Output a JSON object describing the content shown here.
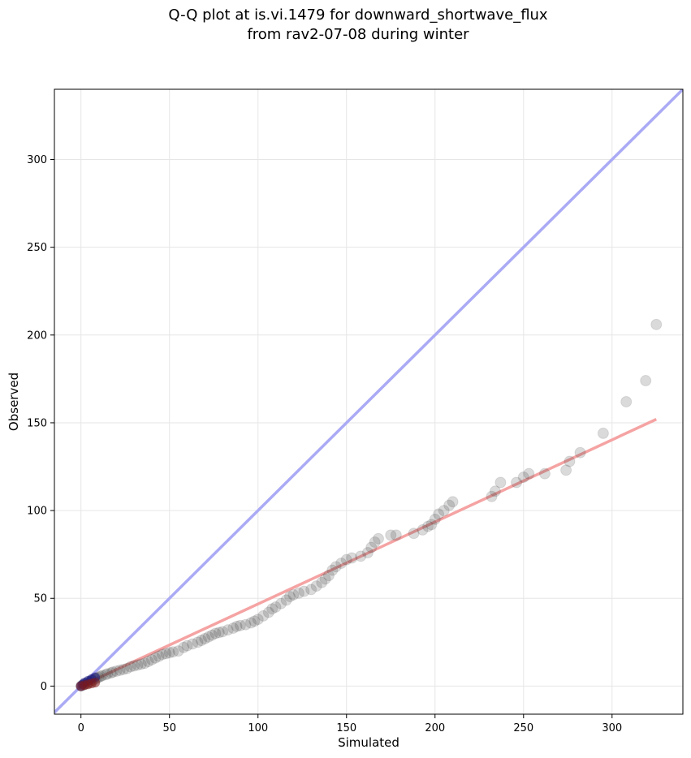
{
  "chart_data": {
    "type": "scatter",
    "title_lines": [
      "Q-Q plot at is.vi.1479 for downward_shortwave_flux",
      "from rav2-07-08 during winter"
    ],
    "xlabel": "Simulated",
    "ylabel": "Observed",
    "xlim": [
      -15,
      340
    ],
    "ylim": [
      -16,
      340
    ],
    "xticks": [
      0,
      50,
      100,
      150,
      200,
      250,
      300
    ],
    "yticks": [
      0,
      50,
      100,
      150,
      200,
      250,
      300
    ],
    "grid": true,
    "colors": {
      "points": "#333333",
      "identity_line": "#aaaaf5",
      "fit_line": "#f5a3a3",
      "low_quantile_blue": "#1a1a80",
      "low_quantile_red": "#801a1a"
    },
    "identity_line": {
      "from": [
        -15,
        -15
      ],
      "to": [
        340,
        340
      ]
    },
    "fit_line": {
      "from": [
        0,
        0
      ],
      "to": [
        325,
        152
      ]
    },
    "points": [
      [
        0,
        0
      ],
      [
        1,
        0.5
      ],
      [
        2,
        1
      ],
      [
        3,
        1.5
      ],
      [
        4,
        2
      ],
      [
        5,
        2.5
      ],
      [
        6,
        3
      ],
      [
        7,
        3.5
      ],
      [
        8,
        4
      ],
      [
        9,
        4.5
      ],
      [
        10,
        5
      ],
      [
        11,
        5.5
      ],
      [
        12,
        6
      ],
      [
        14,
        6.5
      ],
      [
        15,
        7
      ],
      [
        17,
        7.5
      ],
      [
        18,
        8
      ],
      [
        20,
        8.5
      ],
      [
        22,
        9
      ],
      [
        24,
        9.5
      ],
      [
        26,
        10
      ],
      [
        28,
        11
      ],
      [
        30,
        11.5
      ],
      [
        32,
        12
      ],
      [
        34,
        12.5
      ],
      [
        36,
        13
      ],
      [
        38,
        14
      ],
      [
        40,
        15
      ],
      [
        42,
        16
      ],
      [
        44,
        17
      ],
      [
        46,
        18
      ],
      [
        48,
        18.5
      ],
      [
        50,
        19
      ],
      [
        52,
        19.5
      ],
      [
        55,
        20
      ],
      [
        58,
        22
      ],
      [
        60,
        23
      ],
      [
        63,
        24
      ],
      [
        66,
        25
      ],
      [
        68,
        26
      ],
      [
        70,
        27
      ],
      [
        72,
        28
      ],
      [
        74,
        29
      ],
      [
        76,
        30
      ],
      [
        78,
        30.5
      ],
      [
        80,
        31
      ],
      [
        83,
        32
      ],
      [
        86,
        33
      ],
      [
        88,
        34
      ],
      [
        90,
        34.5
      ],
      [
        93,
        35
      ],
      [
        96,
        36
      ],
      [
        98,
        37
      ],
      [
        100,
        38
      ],
      [
        103,
        40
      ],
      [
        106,
        42
      ],
      [
        108,
        44
      ],
      [
        110,
        45
      ],
      [
        113,
        47
      ],
      [
        116,
        49
      ],
      [
        118,
        51
      ],
      [
        120,
        52
      ],
      [
        123,
        53
      ],
      [
        126,
        54
      ],
      [
        130,
        55
      ],
      [
        133,
        57
      ],
      [
        136,
        59
      ],
      [
        138,
        61
      ],
      [
        140,
        63
      ],
      [
        142,
        66
      ],
      [
        144,
        68
      ],
      [
        147,
        70
      ],
      [
        150,
        72
      ],
      [
        153,
        73
      ],
      [
        158,
        74
      ],
      [
        162,
        76
      ],
      [
        164,
        79
      ],
      [
        166,
        82
      ],
      [
        168,
        84
      ],
      [
        175,
        86
      ],
      [
        178,
        86
      ],
      [
        188,
        87
      ],
      [
        193,
        89
      ],
      [
        196,
        91
      ],
      [
        198,
        92
      ],
      [
        200,
        95
      ],
      [
        202,
        98
      ],
      [
        205,
        100
      ],
      [
        208,
        103
      ],
      [
        210,
        105
      ],
      [
        232,
        108
      ],
      [
        234,
        111
      ],
      [
        237,
        116
      ],
      [
        246,
        116
      ],
      [
        250,
        119
      ],
      [
        253,
        121
      ],
      [
        262,
        121
      ],
      [
        274,
        123
      ],
      [
        276,
        128
      ],
      [
        282,
        133
      ],
      [
        295,
        144
      ],
      [
        308,
        162
      ],
      [
        319,
        174
      ],
      [
        325,
        206
      ]
    ],
    "low_points_blue": [
      [
        0,
        0
      ],
      [
        1,
        1
      ],
      [
        2,
        2
      ],
      [
        4,
        3
      ],
      [
        6,
        4
      ],
      [
        8,
        5
      ]
    ],
    "low_points_red": [
      [
        0,
        0
      ],
      [
        2,
        0.5
      ],
      [
        4,
        1
      ],
      [
        6,
        1.5
      ],
      [
        8,
        2
      ]
    ]
  }
}
